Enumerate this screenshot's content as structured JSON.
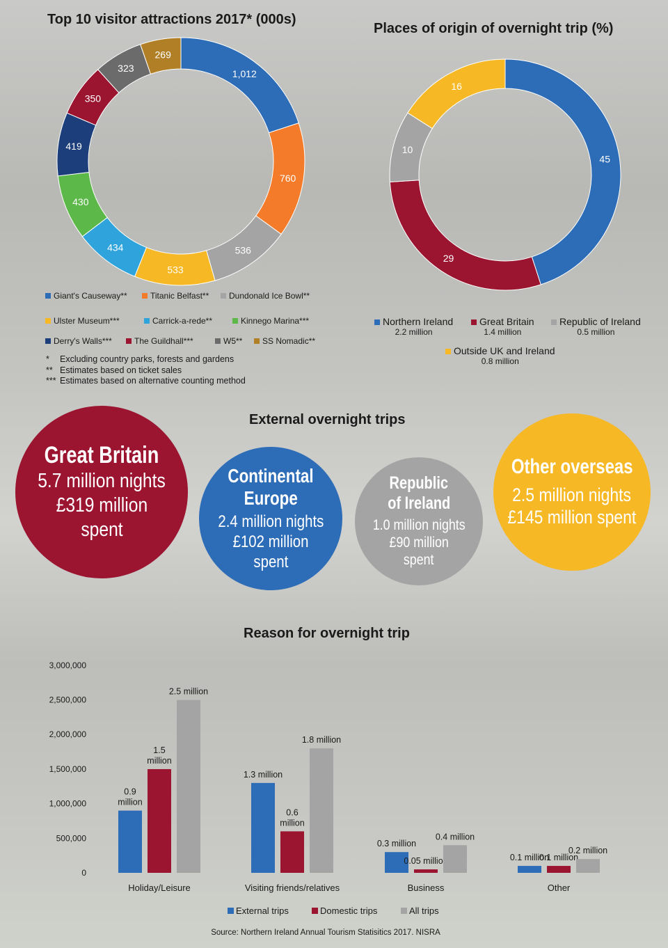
{
  "colors": {
    "blue": "#2d6db8",
    "orange": "#f47b2a",
    "gray": "#a4a4a4",
    "yellow": "#f6b824",
    "lightblue": "#2ea3dc",
    "green": "#5cb848",
    "navy": "#1c3f7c",
    "crimson": "#9b1430",
    "darkgray": "#6b6b6b",
    "brown": "#b17f26"
  },
  "chart_data": [
    {
      "type": "pie",
      "title": "Top 10 visitor attractions 2017* (000s)",
      "categories": [
        "Giant's Causeway**",
        "Titanic Belfast**",
        "Dundonald Ice Bowl**",
        "Ulster Museum***",
        "Carrick-a-rede**",
        "Kinnego Marina***",
        "Derry's Walls***",
        "The Guildhall***",
        "W5**",
        "SS Nomadic**"
      ],
      "values": [
        1012,
        760,
        536,
        533,
        434,
        430,
        419,
        350,
        323,
        269
      ],
      "labels": [
        "1,012",
        "760",
        "536",
        "533",
        "434",
        "430",
        "419",
        "350",
        "323",
        "269"
      ],
      "colors": [
        "#2d6db8",
        "#f47b2a",
        "#a4a4a4",
        "#f6b824",
        "#2ea3dc",
        "#5cb848",
        "#1c3f7c",
        "#9b1430",
        "#6b6b6b",
        "#b17f26"
      ],
      "notes": [
        {
          "mark": "*",
          "text": "Excluding country parks, forests and gardens"
        },
        {
          "mark": "**",
          "text": "Estimates based on ticket sales"
        },
        {
          "mark": "***",
          "text": "Estimates based on alternative counting method"
        }
      ]
    },
    {
      "type": "pie",
      "title": "Places of origin of overnight trip (%)",
      "categories": [
        "Northern Ireland",
        "Great Britain",
        "Republic of Ireland",
        "Outside UK and Ireland"
      ],
      "sublabels": [
        "2.2 million",
        "1.4 million",
        "0.5 million",
        "0.8 million"
      ],
      "values": [
        45,
        29,
        10,
        16
      ],
      "labels": [
        "45",
        "29",
        "10",
        "16"
      ],
      "colors": [
        "#2d6db8",
        "#9b1430",
        "#a4a4a4",
        "#f6b824"
      ]
    },
    {
      "type": "bar",
      "title": "Reason for overnight trip",
      "categories": [
        "Holiday/Leisure",
        "Visiting friends/relatives",
        "Business",
        "Other"
      ],
      "series": [
        {
          "name": "External trips",
          "color": "#2d6db8",
          "values": [
            900000,
            1300000,
            300000,
            100000
          ],
          "labels": [
            "0.9\nmillion",
            "1.3 million",
            "0.3 million",
            "0.1 million"
          ]
        },
        {
          "name": "Domestic trips",
          "color": "#9b1430",
          "values": [
            1500000,
            600000,
            50000,
            100000
          ],
          "labels": [
            "1.5\nmillion",
            "0.6\nmillion",
            "0.05 million",
            "0.1 million"
          ]
        },
        {
          "name": "All trips",
          "color": "#a4a4a4",
          "values": [
            2500000,
            1800000,
            400000,
            200000
          ],
          "labels": [
            "2.5 million",
            "1.8 million",
            "0.4 million",
            "0.2 million"
          ]
        }
      ],
      "yticks": [
        "0",
        "500,000",
        "1,000,000",
        "1,500,000",
        "2,000,000",
        "2,500,000",
        "3,000,000"
      ],
      "ylim": [
        0,
        3000000
      ],
      "source": "Source: Northern Ireland Annual Tourism Statisitics 2017. NISRA"
    }
  ],
  "external": {
    "title": "External overnight trips",
    "items": [
      {
        "name": "Great Britain",
        "l1": "5.7 million nights",
        "l2": "£319 million",
        "l3": "spent"
      },
      {
        "name1": "Continental",
        "name2": "Europe",
        "l1": "2.4 million nights",
        "l2": "£102 million",
        "l3": "spent"
      },
      {
        "name1": "Republic",
        "name2": "of Ireland",
        "l1": "1.0 million nights",
        "l2": "£90 million",
        "l3": "spent"
      },
      {
        "name": "Other overseas",
        "l1": "2.5 million nights",
        "l2": "£145 million spent"
      }
    ]
  }
}
